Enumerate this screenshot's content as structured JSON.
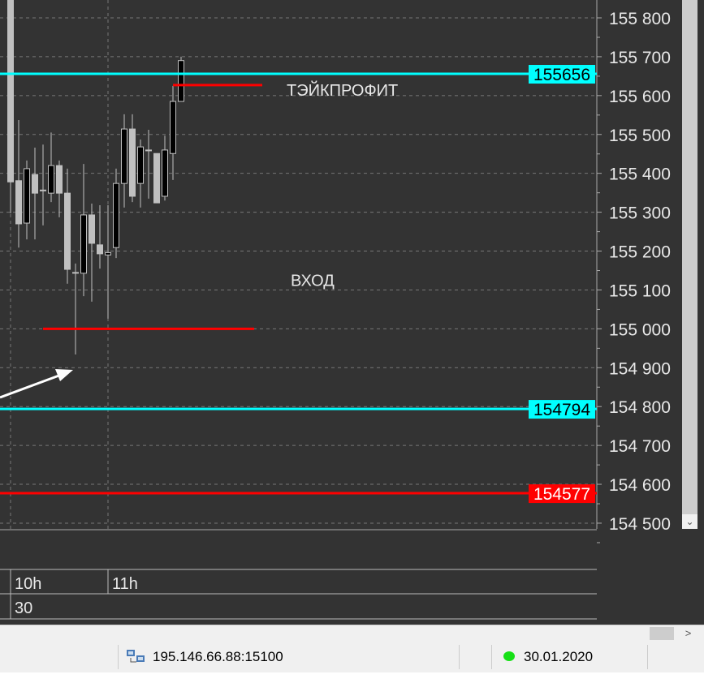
{
  "chart_data": {
    "type": "candlestick",
    "timeframe_minutes": 5,
    "x_tick_labels": [
      {
        "label": "10h",
        "index": 0
      },
      {
        "label": "11h",
        "index": 12
      }
    ],
    "date_row_label": "30",
    "y_ticks": [
      155800,
      155700,
      155600,
      155500,
      155400,
      155300,
      155200,
      155100,
      155000,
      154900,
      154800,
      154700,
      154600,
      154500
    ],
    "y_tick_labels": [
      "155 800",
      "155 700",
      "155 600",
      "155 500",
      "155 400",
      "155 300",
      "155 200",
      "155 100",
      "155 000",
      "154 900",
      "154 800",
      "154 700",
      "154 600",
      "154 500"
    ],
    "ylim": [
      154480,
      155845
    ],
    "grid": true,
    "candles": [
      {
        "o": 156000,
        "h": 156100,
        "l": 155297,
        "c": 155378
      },
      {
        "o": 155381,
        "h": 155537,
        "l": 155209,
        "c": 155270
      },
      {
        "o": 155272,
        "h": 155433,
        "l": 155230,
        "c": 155412
      },
      {
        "o": 155397,
        "h": 155466,
        "l": 155230,
        "c": 155349
      },
      {
        "o": 155357,
        "h": 155474,
        "l": 155266,
        "c": 155357
      },
      {
        "o": 155349,
        "h": 155505,
        "l": 155326,
        "c": 155420
      },
      {
        "o": 155420,
        "h": 155433,
        "l": 155287,
        "c": 155349
      },
      {
        "o": 155349,
        "h": 155412,
        "l": 155116,
        "c": 155153
      },
      {
        "o": 155145,
        "h": 155168,
        "l": 154934,
        "c": 155145
      },
      {
        "o": 155143,
        "h": 155424,
        "l": 155084,
        "c": 155293
      },
      {
        "o": 155293,
        "h": 155322,
        "l": 155070,
        "c": 155220
      },
      {
        "o": 155216,
        "h": 155318,
        "l": 155155,
        "c": 155193
      },
      {
        "o": 155190,
        "h": 155318,
        "l": 155026,
        "c": 155196
      },
      {
        "o": 155209,
        "h": 155412,
        "l": 155182,
        "c": 155374
      },
      {
        "o": 155374,
        "h": 155552,
        "l": 155312,
        "c": 155514
      },
      {
        "o": 155514,
        "h": 155552,
        "l": 155326,
        "c": 155341
      },
      {
        "o": 155374,
        "h": 155487,
        "l": 155312,
        "c": 155468
      },
      {
        "o": 155460,
        "h": 155512,
        "l": 155335,
        "c": 155460
      },
      {
        "o": 155451,
        "h": 155451,
        "l": 155324,
        "c": 155324
      },
      {
        "o": 155341,
        "h": 155497,
        "l": 155330,
        "c": 155460
      },
      {
        "o": 155451,
        "h": 155625,
        "l": 155383,
        "c": 155585
      },
      {
        "o": 155585,
        "h": 155700,
        "l": 155585,
        "c": 155690
      }
    ],
    "price_lines": [
      {
        "price": 155656,
        "label": "155656",
        "color": "#00ffff",
        "text_color": "#000000"
      },
      {
        "price": 154794,
        "label": "154794",
        "color": "#00ffff",
        "text_color": "#000000"
      },
      {
        "price": 154577,
        "label": "154577",
        "color": "#ff0000",
        "text_color": "#ffffff"
      }
    ],
    "segments": [
      {
        "price": 155627,
        "from_index": 20,
        "to_index": 31,
        "color": "#ff0000"
      },
      {
        "price": 155000,
        "from_index": 4,
        "to_index": 30,
        "color": "#ff0000"
      }
    ],
    "annotations": [
      {
        "text": "ТЭЙКПРОФИТ",
        "price": 155600,
        "index": 34
      },
      {
        "text": "ВХОД",
        "price": 155110,
        "index": 34.5
      }
    ],
    "colors": {
      "background": "#333333",
      "bull_body": "#000000",
      "bear_body": "#c0c0c0",
      "wick": "#c0c0c0",
      "grid": "#777777",
      "axis_text": "#e8e8e8"
    }
  },
  "status": {
    "server": "195.146.66.88:15100",
    "date": "30.01.2020",
    "connection_icon": "network-icon",
    "status_icon": "green-dot"
  }
}
